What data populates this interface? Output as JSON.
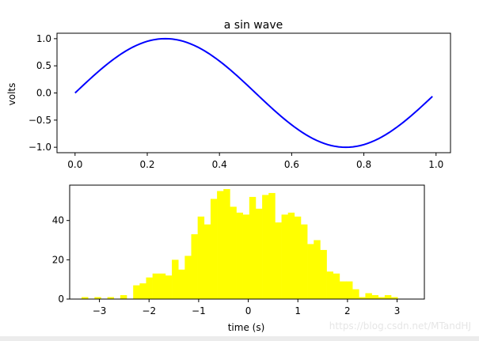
{
  "chart_data": [
    {
      "type": "line",
      "title": "a sin wave",
      "xlabel": "",
      "ylabel": "volts",
      "xlim": [
        -0.05,
        1.04
      ],
      "ylim": [
        -1.1,
        1.1
      ],
      "xticks": [
        "0.0",
        "0.2",
        "0.4",
        "0.6",
        "0.8",
        "1.0"
      ],
      "xtick_values": [
        0.0,
        0.2,
        0.4,
        0.6,
        0.8,
        1.0
      ],
      "yticks": [
        "1.0",
        "0.5",
        "0.0",
        "−0.5",
        "−1.0"
      ],
      "ytick_values": [
        1.0,
        0.5,
        0.0,
        -0.5,
        -1.0
      ],
      "grid": false,
      "series": [
        {
          "color": "#0000ff",
          "function": "sin(2*pi*t)",
          "x_start": 0.0,
          "x_end": 0.99,
          "x_step": 0.01
        }
      ]
    },
    {
      "type": "bar",
      "subtype": "histogram",
      "xlabel": "time (s)",
      "ylabel": "",
      "xlim": [
        -3.6,
        3.55
      ],
      "ylim": [
        0,
        58
      ],
      "xticks": [
        "−3",
        "−2",
        "−1",
        "0",
        "1",
        "2",
        "3"
      ],
      "xtick_values": [
        -3,
        -2,
        -1,
        0,
        1,
        2,
        3
      ],
      "yticks": [
        "0",
        "20",
        "40"
      ],
      "ytick_values": [
        0,
        20,
        40
      ],
      "grid": false,
      "color": "#ffff00",
      "bin_start": -3.36,
      "bin_width": 0.13,
      "values": [
        1,
        0,
        1,
        0,
        1,
        0,
        2,
        0,
        7,
        8,
        11,
        13,
        13,
        12,
        20,
        15,
        22,
        33,
        42,
        38,
        51,
        55,
        56,
        47,
        44,
        43,
        52,
        46,
        53,
        54,
        39,
        43,
        44,
        42,
        38,
        28,
        30,
        25,
        14,
        13,
        9,
        9,
        5,
        1,
        3,
        2,
        1,
        2,
        1
      ]
    }
  ],
  "watermark": "https://blog.csdn.net/MTandHJ"
}
